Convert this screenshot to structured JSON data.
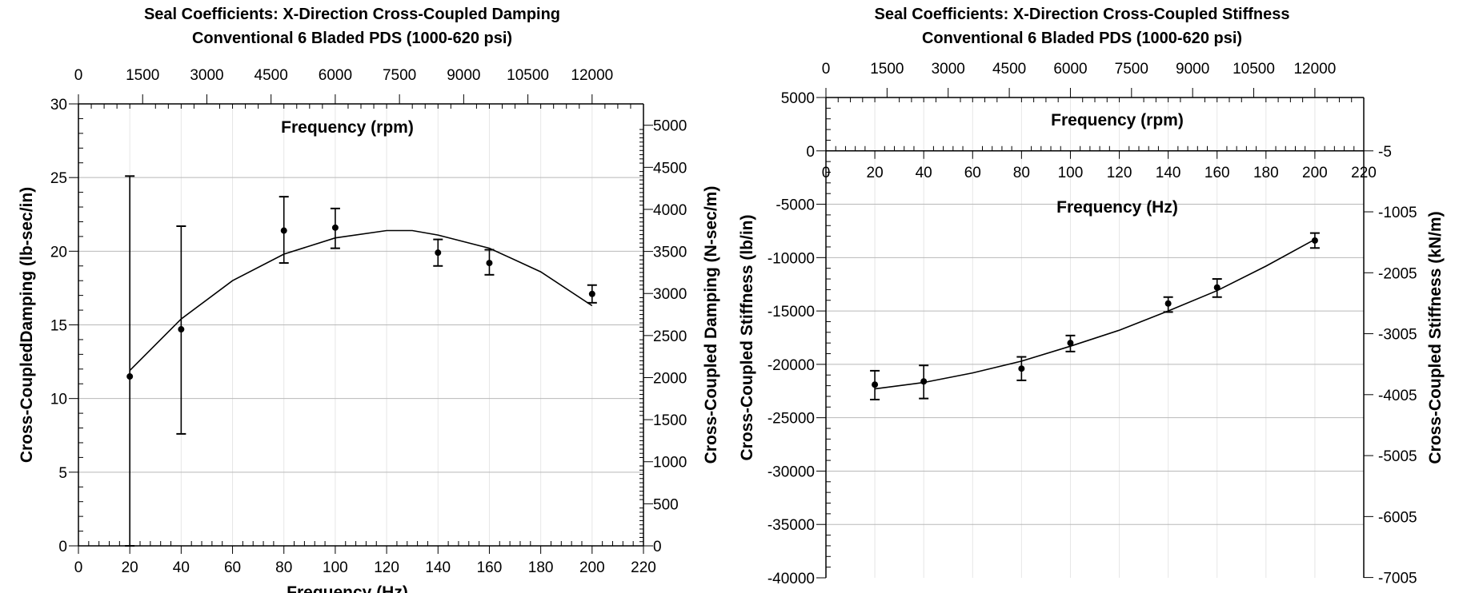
{
  "chart_data": [
    {
      "type": "scatter",
      "title": [
        "Seal Coefficients: X-Direction Cross-Coupled Damping",
        "Conventional 6 Bladed PDS  (1000-620 psi)"
      ],
      "xlabel": "Frequency (Hz)",
      "x2label": "Frequency (rpm)",
      "ylabel": "Cross-CoupledDamping (lb-sec/in)",
      "y2label": "Cross-Coupled  Damping (N-sec/m)",
      "xlim": [
        0,
        220
      ],
      "ylim": [
        0,
        30
      ],
      "xticks": [
        0,
        20,
        40,
        60,
        80,
        100,
        120,
        140,
        160,
        180,
        200,
        220
      ],
      "yticks": [
        0,
        5,
        10,
        15,
        20,
        25,
        30
      ],
      "x2ticks": [
        0,
        1500,
        3000,
        4500,
        6000,
        7500,
        9000,
        10500,
        12000
      ],
      "y2ticks": [
        0,
        500,
        1000,
        1500,
        2000,
        2500,
        3000,
        3500,
        4000,
        4500,
        5000
      ],
      "grid": true,
      "points": [
        {
          "x": 20,
          "y": 11.5,
          "lo": 0,
          "hi": 25.1
        },
        {
          "x": 40,
          "y": 14.7,
          "lo": 7.6,
          "hi": 21.7
        },
        {
          "x": 80,
          "y": 21.4,
          "lo": 19.2,
          "hi": 23.7
        },
        {
          "x": 100,
          "y": 21.6,
          "lo": 20.2,
          "hi": 22.9
        },
        {
          "x": 140,
          "y": 19.9,
          "lo": 19.0,
          "hi": 20.8
        },
        {
          "x": 160,
          "y": 19.2,
          "lo": 18.4,
          "hi": 20.1
        },
        {
          "x": 200,
          "y": 17.1,
          "lo": 16.5,
          "hi": 17.7
        }
      ],
      "fit": {
        "x": [
          20,
          40,
          60,
          80,
          100,
          120,
          130,
          140,
          160,
          180,
          200
        ],
        "y": [
          11.9,
          15.4,
          18.0,
          19.8,
          20.9,
          21.4,
          21.4,
          21.1,
          20.2,
          18.6,
          16.3
        ]
      }
    },
    {
      "type": "scatter",
      "title": [
        "Seal Coefficients: X-Direction Cross-Coupled Stiffness",
        "Conventional 6 Bladed PDS (1000-620 psi)"
      ],
      "xlabel": "Frequency (Hz)",
      "x2label": "Frequency (rpm)",
      "ylabel": "Cross-Coupled Stiffness (lb/in)",
      "y2label": "Cross-Coupled Stiffness (kN/m)",
      "xlim": [
        0,
        220
      ],
      "ylim": [
        -40000,
        5000
      ],
      "xticks": [
        0,
        20,
        40,
        60,
        80,
        100,
        120,
        140,
        160,
        180,
        200,
        220
      ],
      "yticks": [
        -40000,
        -35000,
        -30000,
        -25000,
        -20000,
        -15000,
        -10000,
        -5000,
        0,
        5000
      ],
      "x2ticks": [
        0,
        1500,
        3000,
        4500,
        6000,
        7500,
        9000,
        10500,
        12000
      ],
      "y2ticks": [
        -5,
        -1005,
        -2005,
        -3005,
        -4005,
        -5005,
        -6005,
        -7005
      ],
      "grid": true,
      "points": [
        {
          "x": 20,
          "y": -21900,
          "lo": -23300,
          "hi": -20600
        },
        {
          "x": 40,
          "y": -21600,
          "lo": -23200,
          "hi": -20100
        },
        {
          "x": 80,
          "y": -20400,
          "lo": -21500,
          "hi": -19300
        },
        {
          "x": 100,
          "y": -18000,
          "lo": -18800,
          "hi": -17300
        },
        {
          "x": 140,
          "y": -14300,
          "lo": -15100,
          "hi": -13700
        },
        {
          "x": 160,
          "y": -12800,
          "lo": -13700,
          "hi": -12000
        },
        {
          "x": 200,
          "y": -8400,
          "lo": -9100,
          "hi": -7700
        }
      ],
      "fit": {
        "x": [
          20,
          40,
          60,
          80,
          100,
          120,
          140,
          160,
          180,
          200
        ],
        "y": [
          -22300,
          -21700,
          -20800,
          -19700,
          -18300,
          -16800,
          -15000,
          -13100,
          -10800,
          -8300
        ]
      }
    }
  ]
}
